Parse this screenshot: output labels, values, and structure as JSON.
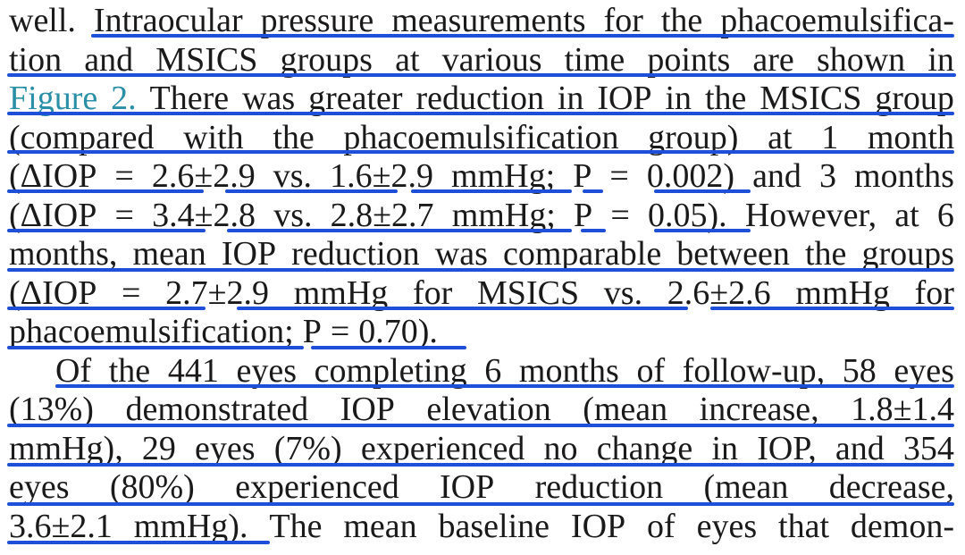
{
  "document": {
    "figure_ref": "Figure 2",
    "lines": [
      "well. Intraocular pressure measurements for the phacoemulsifica-",
      "tion and MSICS groups at various time points are shown in",
      "Figure 2. There was greater reduction in IOP in the MSICS group",
      "(compared with the phacoemulsification group) at 1 month",
      "(ΔIOP = 2.6±2.9 vs. 1.6±2.9 mmHg; P = 0.002) and 3 months",
      "(ΔIOP = 3.4±2.8 vs. 2.8±2.7 mmHg; P = 0.05). However, at 6",
      "months, mean IOP reduction was comparable between the groups",
      "(ΔIOP = 2.7±2.9 mmHg for MSICS vs. 2.6±2.6 mmHg for",
      "phacoemulsification; P = 0.70).",
      "Of the 441 eyes completing 6 months of follow-up, 58 eyes",
      "(13%) demonstrated IOP elevation (mean increase, 1.8±1.4",
      "mmHg), 29 eyes (7%) experienced no change in IOP, and 354",
      "eyes (80%) experienced IOP reduction (mean decrease,",
      "3.6±2.1 mmHg). The mean baseline IOP of eyes that demon-"
    ]
  },
  "annotation": {
    "underline_color": "#1e4fd8"
  }
}
